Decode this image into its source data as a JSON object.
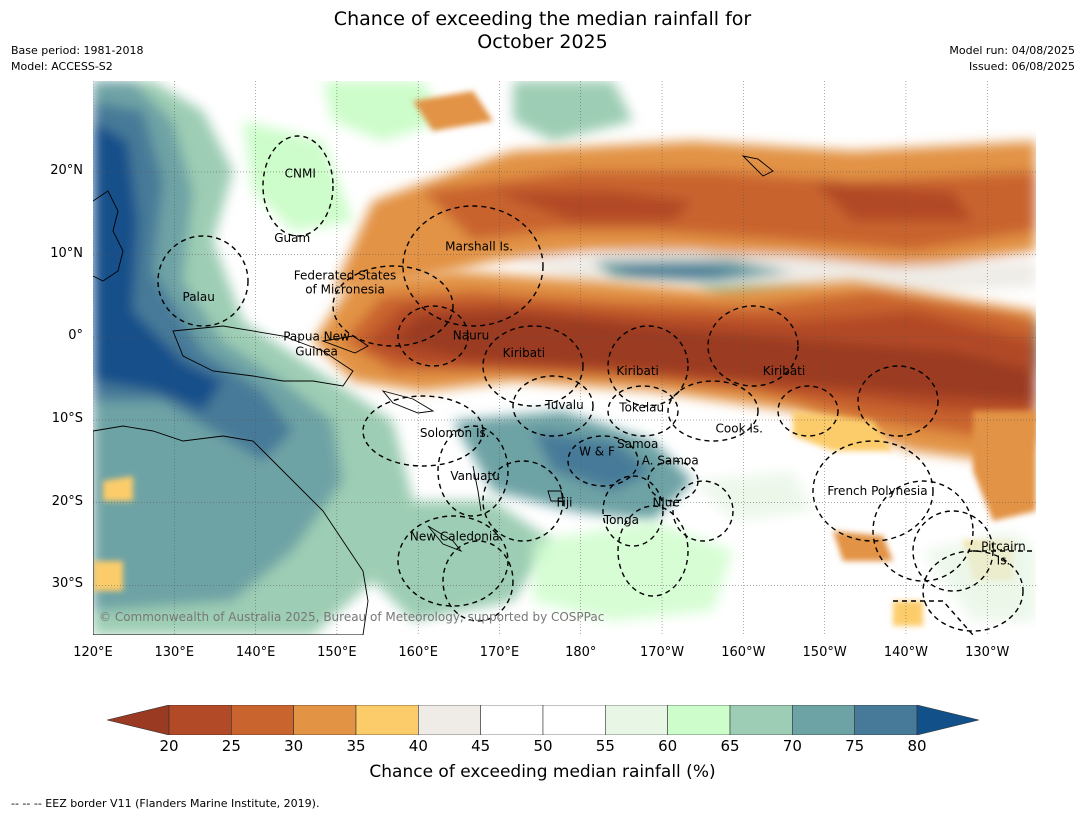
{
  "title": [
    "Chance of exceeding the median rainfall for",
    "October 2025"
  ],
  "meta_left": [
    "Base period: 1981-2018",
    "Model: ACCESS-S2"
  ],
  "meta_right": [
    "Model run: 04/08/2025",
    "Issued: 06/08/2025"
  ],
  "copyright": "© Commonwealth of Australia 2025, Bureau of Meteorology, supported by COSPPac",
  "map": {
    "lon_range": [
      120,
      236
    ],
    "lat_range": [
      -36,
      31
    ],
    "lon_ticks": [
      {
        "lon": 120,
        "label": "120°E"
      },
      {
        "lon": 130,
        "label": "130°E"
      },
      {
        "lon": 140,
        "label": "140°E"
      },
      {
        "lon": 150,
        "label": "150°E"
      },
      {
        "lon": 160,
        "label": "160°E"
      },
      {
        "lon": 170,
        "label": "170°E"
      },
      {
        "lon": 180,
        "label": "180°"
      },
      {
        "lon": 190,
        "label": "170°W"
      },
      {
        "lon": 200,
        "label": "160°W"
      },
      {
        "lon": 210,
        "label": "150°W"
      },
      {
        "lon": 220,
        "label": "140°W"
      },
      {
        "lon": 230,
        "label": "130°W"
      }
    ],
    "lat_ticks": [
      {
        "lat": 20,
        "label": "20°N"
      },
      {
        "lat": 10,
        "label": "10°N"
      },
      {
        "lat": 0,
        "label": "0°"
      },
      {
        "lat": -10,
        "label": "10°S"
      },
      {
        "lat": -20,
        "label": "20°S"
      },
      {
        "lat": -30,
        "label": "30°S"
      }
    ],
    "places": [
      {
        "name": "CNMI",
        "lon": 145.5,
        "lat": 19.8
      },
      {
        "name": "Guam",
        "lon": 144.5,
        "lat": 12.0
      },
      {
        "name": "Marshall Is.",
        "lon": 167.5,
        "lat": 11.0
      },
      {
        "name": "Federated States",
        "lon": 151.0,
        "lat": 7.5
      },
      {
        "name": "of Micronesia",
        "lon": 151.0,
        "lat": 5.8
      },
      {
        "name": "Palau",
        "lon": 133.0,
        "lat": 4.9
      },
      {
        "name": "Papua New",
        "lon": 147.5,
        "lat": 0.1
      },
      {
        "name": "Guinea",
        "lon": 147.5,
        "lat": -1.7
      },
      {
        "name": "Nauru",
        "lon": 166.5,
        "lat": 0.2
      },
      {
        "name": "Kiribati",
        "lon": 173.0,
        "lat": -1.9
      },
      {
        "name": "Kiribati",
        "lon": 187.0,
        "lat": -4.1
      },
      {
        "name": "Kiribati",
        "lon": 205.0,
        "lat": -4.1
      },
      {
        "name": "Tuvalu",
        "lon": 178.0,
        "lat": -8.2
      },
      {
        "name": "Tokelau",
        "lon": 187.5,
        "lat": -8.5
      },
      {
        "name": "Cook Is.",
        "lon": 199.5,
        "lat": -11.0
      },
      {
        "name": "Solomon Is.",
        "lon": 164.5,
        "lat": -11.6
      },
      {
        "name": "Samoa",
        "lon": 187.0,
        "lat": -12.9
      },
      {
        "name": "W & F",
        "lon": 182.0,
        "lat": -13.8
      },
      {
        "name": "A. Samoa",
        "lon": 191.0,
        "lat": -14.9
      },
      {
        "name": "Vanuatu",
        "lon": 167.0,
        "lat": -16.8
      },
      {
        "name": "French Polynesia",
        "lon": 216.5,
        "lat": -18.6
      },
      {
        "name": "Fiji",
        "lon": 178.0,
        "lat": -20.0
      },
      {
        "name": "Niue",
        "lon": 190.5,
        "lat": -20.0
      },
      {
        "name": "Tonga",
        "lon": 185.0,
        "lat": -22.1
      },
      {
        "name": "New Caledonia",
        "lon": 164.5,
        "lat": -24.1
      },
      {
        "name": "Pitcairn",
        "lon": 232.0,
        "lat": -25.3
      },
      {
        "name": "Is.",
        "lon": 232.0,
        "lat": -27.0
      }
    ]
  },
  "colorbar": {
    "ticks": [
      "20",
      "25",
      "30",
      "35",
      "40",
      "45",
      "50",
      "55",
      "60",
      "65",
      "70",
      "75",
      "80"
    ],
    "colors": [
      "#b24a27",
      "#c9642e",
      "#e29344",
      "#fccc6a",
      "#efece7",
      "#ffffff",
      "#ffffff",
      "#e8f6e6",
      "#cdfdca",
      "#9dcdb4",
      "#6ea3a5",
      "#467a98"
    ],
    "under_color": "#9a3a23",
    "over_color": "#12508a",
    "label": "Chance of exceeding median rainfall (%)"
  },
  "footnote": "-- -- -- EEZ border V11 (Flanders Marine Institute, 2019)."
}
